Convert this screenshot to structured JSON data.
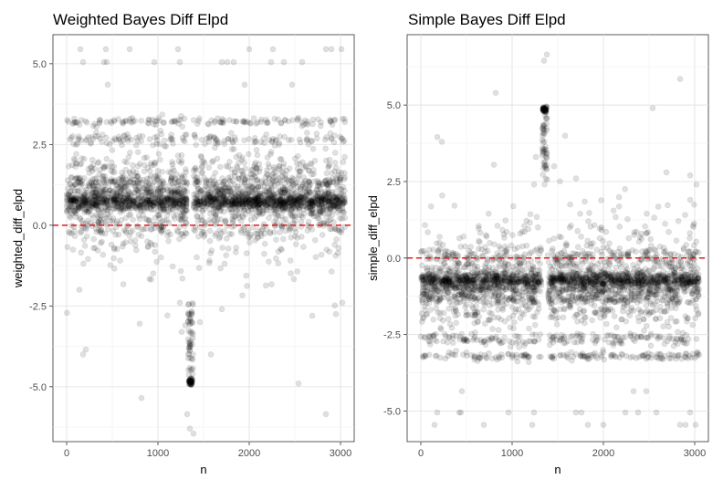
{
  "chart_data": [
    {
      "type": "scatter",
      "title": "Weighted Bayes Diff Elpd",
      "xlabel": "n",
      "ylabel": "weighted_diff_elpd",
      "xlim": [
        -150,
        3150
      ],
      "ylim": [
        -6.7,
        5.9
      ],
      "xticks": [
        0,
        1000,
        2000,
        3000
      ],
      "yticks": [
        -5.0,
        -2.5,
        0.0,
        2.5,
        5.0
      ],
      "ytick_labels": [
        "-5.0",
        "-2.5",
        "0.0",
        "2.5",
        "5.0"
      ],
      "xtick_labels": [
        "0",
        "1000",
        "2000",
        "3000"
      ],
      "grid": true,
      "reference_line": {
        "y": 0,
        "color": "#e41a1c",
        "style": "dashed"
      },
      "point_color": "#000000",
      "point_alpha": 0.12,
      "gap": [
        1320,
        1390
      ],
      "n_points": 3050,
      "bands": [
        {
          "y": 0.75,
          "share": 0.34,
          "spread": 0.1
        },
        {
          "y": 0.55,
          "share": 0.1,
          "spread": 0.08
        },
        {
          "y": 1.05,
          "share": 0.12,
          "spread": 0.1
        },
        {
          "y": 1.35,
          "share": 0.1,
          "spread": 0.1
        },
        {
          "y": 1.7,
          "share": 0.05,
          "spread": 0.15
        },
        {
          "y": 0.3,
          "share": 0.05,
          "spread": 0.12
        },
        {
          "y": -0.05,
          "share": 0.06,
          "spread": 0.15
        },
        {
          "y": -0.4,
          "share": 0.03,
          "spread": 0.25
        },
        {
          "y": 2.0,
          "share": 0.03,
          "spread": 0.2
        },
        {
          "y": 2.65,
          "share": 0.05,
          "spread": 0.1
        },
        {
          "y": 3.2,
          "share": 0.04,
          "spread": 0.06
        },
        {
          "y": -1.0,
          "share": 0.015,
          "spread": 0.3
        },
        {
          "y": -1.8,
          "share": 0.006,
          "spread": 0.4
        }
      ],
      "outliers": [
        {
          "x": 150,
          "y": 5.45
        },
        {
          "x": 180,
          "y": 5.05
        },
        {
          "x": 410,
          "y": 5.05
        },
        {
          "x": 440,
          "y": 5.05
        },
        {
          "x": 430,
          "y": 5.45
        },
        {
          "x": 450,
          "y": 4.35
        },
        {
          "x": 690,
          "y": 5.45
        },
        {
          "x": 960,
          "y": 5.05
        },
        {
          "x": 1220,
          "y": 5.45
        },
        {
          "x": 1240,
          "y": 5.05
        },
        {
          "x": 1700,
          "y": 5.05
        },
        {
          "x": 1760,
          "y": 5.05
        },
        {
          "x": 1830,
          "y": 5.05
        },
        {
          "x": 1950,
          "y": 4.35
        },
        {
          "x": 2000,
          "y": 5.45
        },
        {
          "x": 2240,
          "y": 5.05
        },
        {
          "x": 2260,
          "y": 5.45
        },
        {
          "x": 2470,
          "y": 4.35
        },
        {
          "x": 2580,
          "y": 5.05
        },
        {
          "x": 2840,
          "y": 5.45
        },
        {
          "x": 2900,
          "y": 5.45
        },
        {
          "x": 3010,
          "y": 5.45
        },
        {
          "x": 2380,
          "y": 5.05
        },
        {
          "x": 140,
          "y": -2.0
        },
        {
          "x": 210,
          "y": -3.85
        },
        {
          "x": 180,
          "y": -4.0
        },
        {
          "x": 800,
          "y": -3.05
        },
        {
          "x": 820,
          "y": -5.35
        },
        {
          "x": 1240,
          "y": -2.4
        },
        {
          "x": 1260,
          "y": -3.3
        },
        {
          "x": 1300,
          "y": -3.1
        },
        {
          "x": 1370,
          "y": -2.7
        },
        {
          "x": 1390,
          "y": -6.45
        },
        {
          "x": 1350,
          "y": -6.3
        },
        {
          "x": 1320,
          "y": -5.85
        },
        {
          "x": 1580,
          "y": -4.0
        },
        {
          "x": 1460,
          "y": -3.0
        },
        {
          "x": 2540,
          "y": -4.9
        },
        {
          "x": 2690,
          "y": -2.8
        },
        {
          "x": 2840,
          "y": -5.85
        },
        {
          "x": 2950,
          "y": -2.75
        },
        {
          "x": 3020,
          "y": -2.4
        },
        {
          "x": 1700,
          "y": -2.6
        }
      ],
      "spike": {
        "x": [
          1330,
          1385
        ],
        "y_top": -2.4,
        "y_bottom": -4.95,
        "cluster_y": -4.85
      }
    },
    {
      "type": "scatter",
      "title": "Simple Bayes Diff Elpd",
      "xlabel": "n",
      "ylabel": "simple_diff_elpd",
      "xlim": [
        -150,
        3150
      ],
      "ylim": [
        -6.0,
        7.3
      ],
      "xticks": [
        0,
        1000,
        2000,
        3000
      ],
      "yticks": [
        -5.0,
        -2.5,
        0.0,
        2.5,
        5.0
      ],
      "ytick_labels": [
        "-5.0",
        "-2.5",
        "0.0",
        "2.5",
        "5.0"
      ],
      "xtick_labels": [
        "0",
        "1000",
        "2000",
        "3000"
      ],
      "grid": true,
      "reference_line": {
        "y": 0,
        "color": "#e41a1c",
        "style": "dashed"
      },
      "point_color": "#000000",
      "point_alpha": 0.12,
      "gap": [
        1320,
        1390
      ],
      "n_points": 3050,
      "bands": [
        {
          "y": -0.75,
          "share": 0.32,
          "spread": 0.1
        },
        {
          "y": -0.55,
          "share": 0.1,
          "spread": 0.08
        },
        {
          "y": -1.05,
          "share": 0.12,
          "spread": 0.1
        },
        {
          "y": -1.35,
          "share": 0.1,
          "spread": 0.1
        },
        {
          "y": -1.7,
          "share": 0.04,
          "spread": 0.15
        },
        {
          "y": -0.3,
          "share": 0.05,
          "spread": 0.12
        },
        {
          "y": 0.05,
          "share": 0.06,
          "spread": 0.15
        },
        {
          "y": 0.4,
          "share": 0.03,
          "spread": 0.25
        },
        {
          "y": -2.0,
          "share": 0.03,
          "spread": 0.2
        },
        {
          "y": -2.65,
          "share": 0.06,
          "spread": 0.1
        },
        {
          "y": -3.2,
          "share": 0.05,
          "spread": 0.06
        },
        {
          "y": 1.0,
          "share": 0.015,
          "spread": 0.3
        },
        {
          "y": 1.8,
          "share": 0.006,
          "spread": 0.4
        }
      ],
      "outliers": [
        {
          "x": 150,
          "y": -5.45
        },
        {
          "x": 180,
          "y": -5.05
        },
        {
          "x": 420,
          "y": -5.05
        },
        {
          "x": 440,
          "y": -5.05
        },
        {
          "x": 450,
          "y": -4.35
        },
        {
          "x": 690,
          "y": -5.45
        },
        {
          "x": 960,
          "y": -5.05
        },
        {
          "x": 1220,
          "y": -5.45
        },
        {
          "x": 1240,
          "y": -5.05
        },
        {
          "x": 1700,
          "y": -5.05
        },
        {
          "x": 1760,
          "y": -5.05
        },
        {
          "x": 1830,
          "y": -5.45
        },
        {
          "x": 2000,
          "y": -5.45
        },
        {
          "x": 2240,
          "y": -5.05
        },
        {
          "x": 2330,
          "y": -4.35
        },
        {
          "x": 2470,
          "y": -4.35
        },
        {
          "x": 2580,
          "y": -5.05
        },
        {
          "x": 2840,
          "y": -5.45
        },
        {
          "x": 2900,
          "y": -5.45
        },
        {
          "x": 3010,
          "y": -5.45
        },
        {
          "x": 2380,
          "y": -5.05
        },
        {
          "x": 2950,
          "y": -5.05
        },
        {
          "x": 180,
          "y": 3.95
        },
        {
          "x": 230,
          "y": 3.8
        },
        {
          "x": 800,
          "y": 3.05
        },
        {
          "x": 820,
          "y": 5.4
        },
        {
          "x": 1240,
          "y": 2.4
        },
        {
          "x": 1260,
          "y": 3.3
        },
        {
          "x": 1580,
          "y": 4.0
        },
        {
          "x": 1460,
          "y": 3.0
        },
        {
          "x": 2540,
          "y": 4.9
        },
        {
          "x": 2690,
          "y": 2.8
        },
        {
          "x": 2840,
          "y": 5.85
        },
        {
          "x": 2950,
          "y": 2.7
        },
        {
          "x": 3020,
          "y": 2.4
        },
        {
          "x": 1350,
          "y": 6.45
        },
        {
          "x": 1380,
          "y": 6.65
        },
        {
          "x": 1700,
          "y": 2.6
        }
      ],
      "spike": {
        "x": [
          1330,
          1385
        ],
        "y_top": 2.4,
        "y_bottom": 4.95,
        "cluster_y": 4.85
      }
    }
  ]
}
